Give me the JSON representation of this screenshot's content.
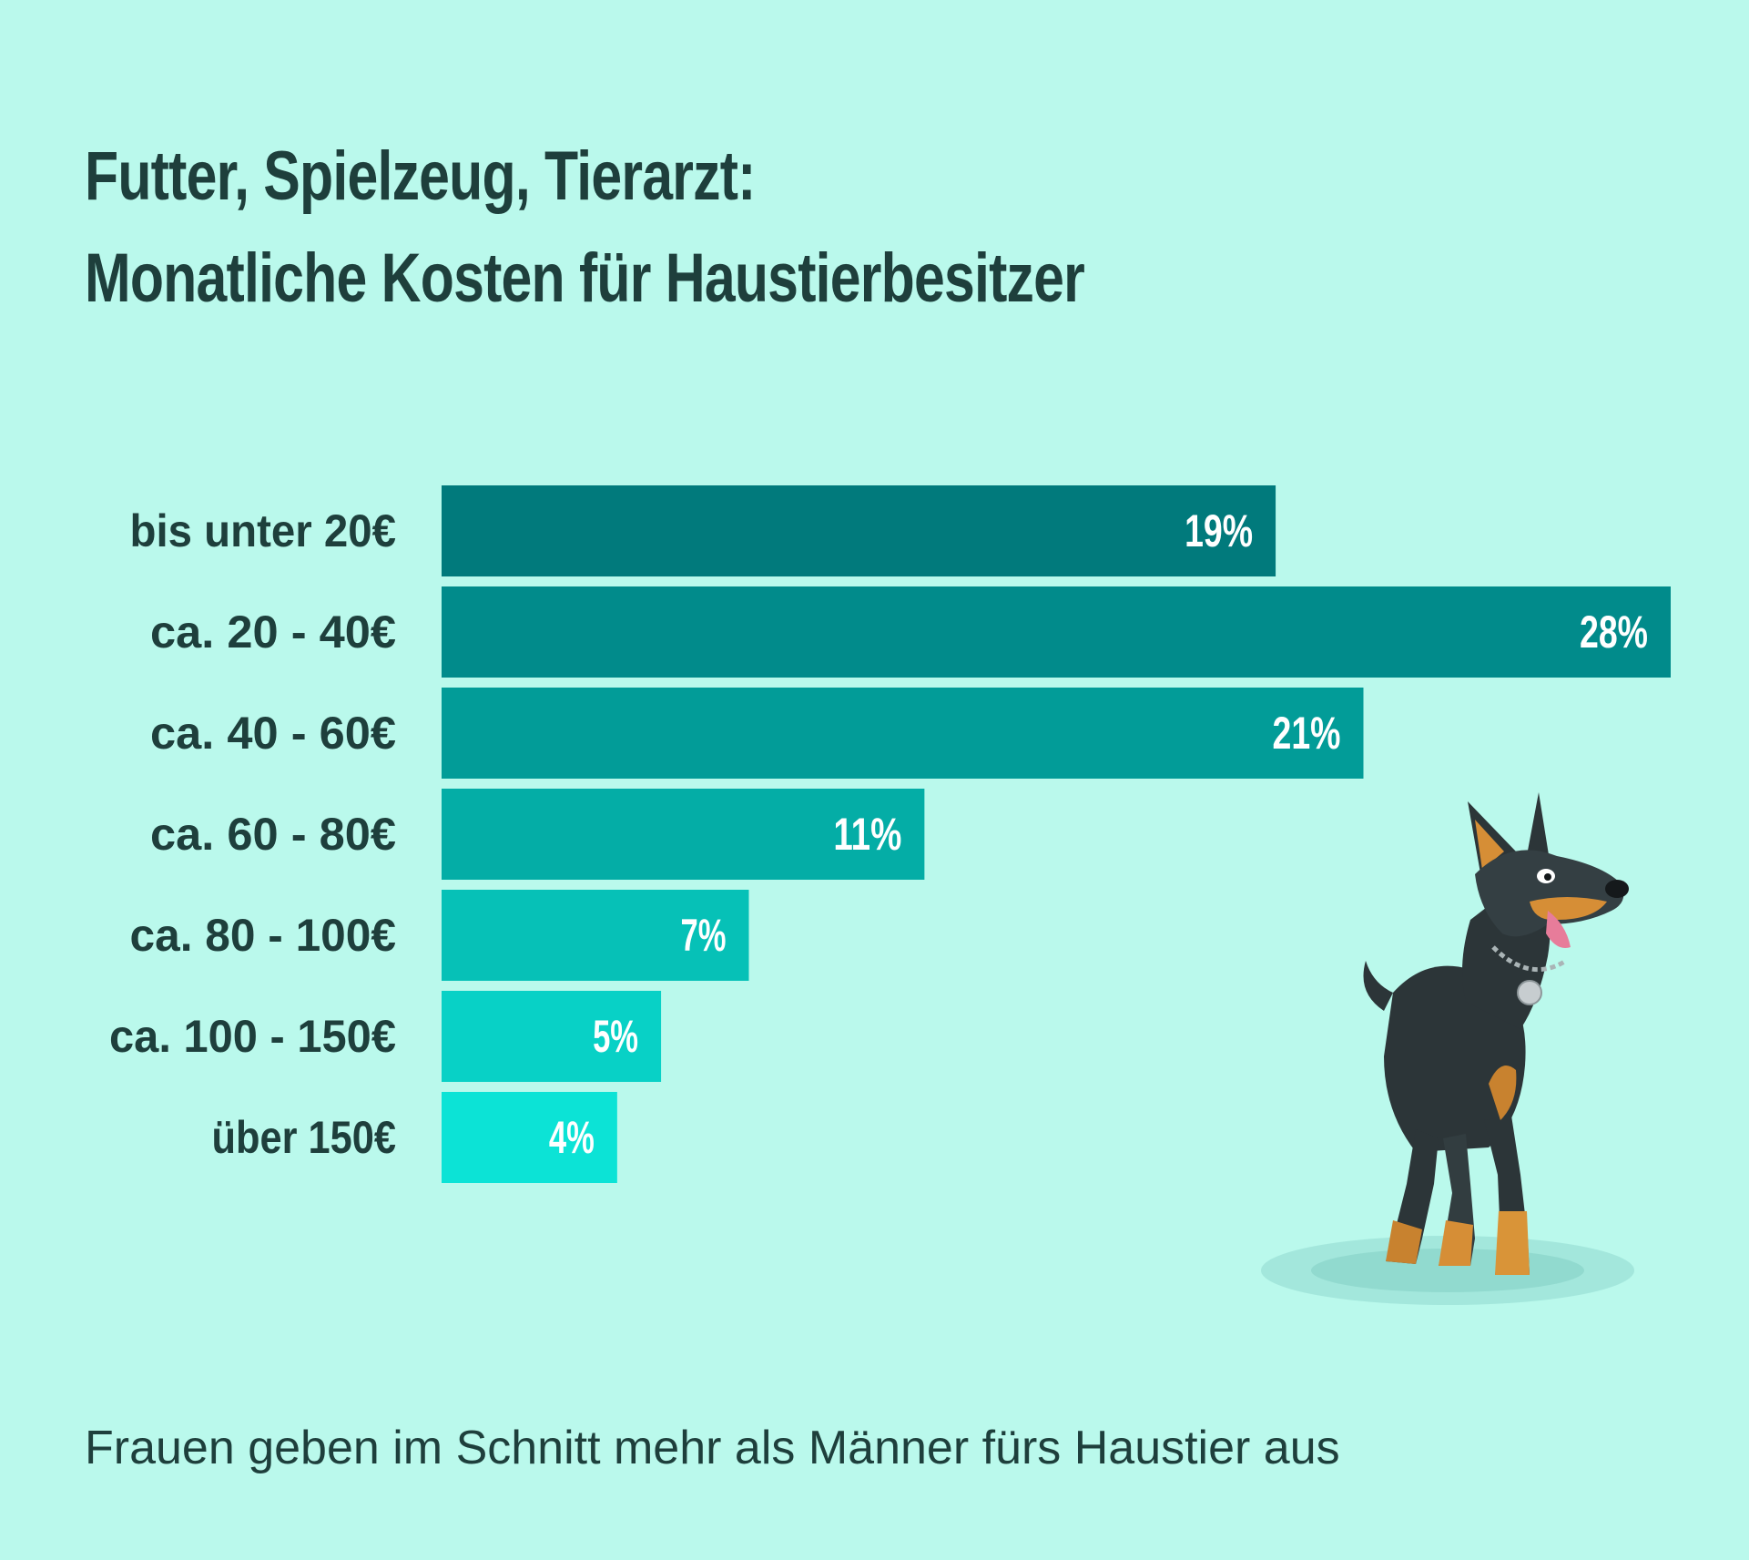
{
  "header": {
    "title_line1": "Futter, Spielzeug, Tierarzt:",
    "title_line2": "Monatliche Kosten für Haustierbesitzer"
  },
  "footer": {
    "subtitle": "Frauen geben im Schnitt mehr als Männer fürs Haustier aus"
  },
  "chart_data": {
    "type": "bar",
    "orientation": "horizontal",
    "title": "Futter, Spielzeug, Tierarzt: Monatliche Kosten für Haustierbesitzer",
    "categories": [
      "bis unter 20€",
      "ca. 20 - 40€",
      "ca. 40 - 60€",
      "ca. 60 - 80€",
      "ca. 80 - 100€",
      "ca. 100 - 150€",
      "über 150€"
    ],
    "values": [
      19,
      28,
      21,
      11,
      7,
      5,
      4
    ],
    "value_labels": [
      "19%",
      "28%",
      "21%",
      "11%",
      "7%",
      "5%",
      "4%"
    ],
    "unit": "%",
    "xlim": [
      0,
      28
    ],
    "grid": false,
    "legend": "none",
    "colors": [
      "#017a7c",
      "#018b8b",
      "#029c98",
      "#04ada6",
      "#06c1b7",
      "#08d1c6",
      "#0ce3d6"
    ],
    "label_color": "#ffffff"
  },
  "illustration": {
    "icon": "doberman-dog-icon"
  },
  "colors": {
    "background": "#baf9ec",
    "text": "#1e3f3c"
  }
}
